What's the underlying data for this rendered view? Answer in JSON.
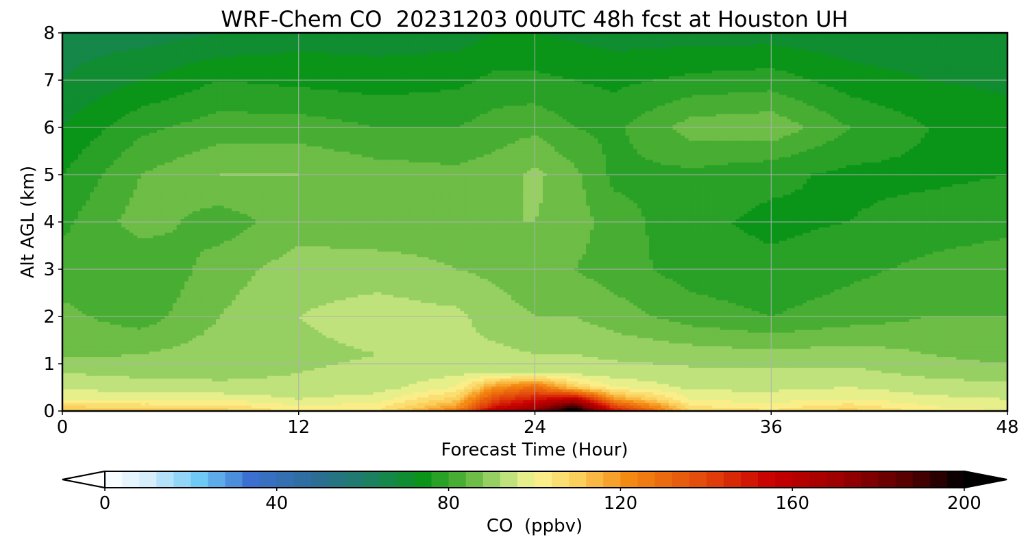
{
  "chart_data": {
    "type": "heatmap",
    "title": "WRF-Chem CO  20231203 00UTC 48h fcst at Houston UH",
    "xlabel": "Forecast Time (Hour)",
    "ylabel": "Alt AGL (km)",
    "xlim": [
      0,
      48
    ],
    "ylim": [
      0,
      8
    ],
    "x_ticks": [
      0,
      12,
      24,
      36,
      48
    ],
    "y_ticks": [
      0,
      1,
      2,
      3,
      4,
      5,
      6,
      7,
      8
    ],
    "grid": true,
    "colorbar": {
      "label": "CO  (ppbv)",
      "range": [
        0,
        200
      ],
      "step": 4,
      "ticks": [
        0,
        40,
        80,
        120,
        160,
        200
      ],
      "extend": "both",
      "placement": "bottom"
    },
    "grid_x": [
      0,
      4,
      8,
      12,
      16,
      20,
      22,
      24,
      26,
      28,
      32,
      36,
      40,
      44,
      48
    ],
    "grid_y": [
      0,
      0.1,
      0.25,
      0.5,
      0.8,
      1.2,
      2,
      3,
      4,
      5,
      6,
      7,
      8
    ],
    "values": [
      [
        112,
        110,
        110,
        102,
        104,
        125,
        160,
        175,
        205,
        150,
        108,
        104,
        110,
        102,
        100
      ],
      [
        108,
        106,
        106,
        100,
        102,
        118,
        150,
        165,
        190,
        140,
        104,
        102,
        106,
        100,
        98
      ],
      [
        100,
        99,
        99,
        96,
        98,
        110,
        140,
        150,
        160,
        120,
        99,
        98,
        100,
        97,
        96
      ],
      [
        95,
        94,
        93,
        93,
        94,
        100,
        120,
        130,
        110,
        100,
        95,
        95,
        96,
        94,
        93
      ],
      [
        92,
        91,
        91,
        92,
        93,
        95,
        96,
        96,
        95,
        94,
        93,
        93,
        93,
        91,
        90
      ],
      [
        87,
        88,
        90,
        91,
        92,
        93,
        93,
        92,
        92,
        91,
        90,
        89,
        90,
        88,
        86
      ],
      [
        85,
        82,
        88,
        92,
        94,
        93,
        90,
        88,
        88,
        86,
        82,
        80,
        82,
        84,
        84
      ],
      [
        82,
        80,
        86,
        90,
        90,
        88,
        87,
        85,
        84,
        82,
        78,
        77,
        79,
        81,
        82
      ],
      [
        79,
        86,
        82,
        86,
        85,
        86,
        88,
        88,
        86,
        82,
        77,
        75,
        76,
        78,
        79
      ],
      [
        76,
        84,
        88,
        88,
        86,
        85,
        86,
        89,
        85,
        79,
        79,
        77,
        75,
        75,
        76
      ],
      [
        72,
        79,
        82,
        82,
        80,
        80,
        82,
        83,
        80,
        79,
        86,
        87,
        80,
        76,
        74
      ],
      [
        68,
        72,
        76,
        75,
        74,
        75,
        77,
        77,
        76,
        75,
        77,
        78,
        74,
        72,
        71
      ],
      [
        66,
        66,
        68,
        70,
        70,
        70,
        72,
        72,
        71,
        70,
        70,
        70,
        69,
        68,
        68
      ]
    ]
  }
}
